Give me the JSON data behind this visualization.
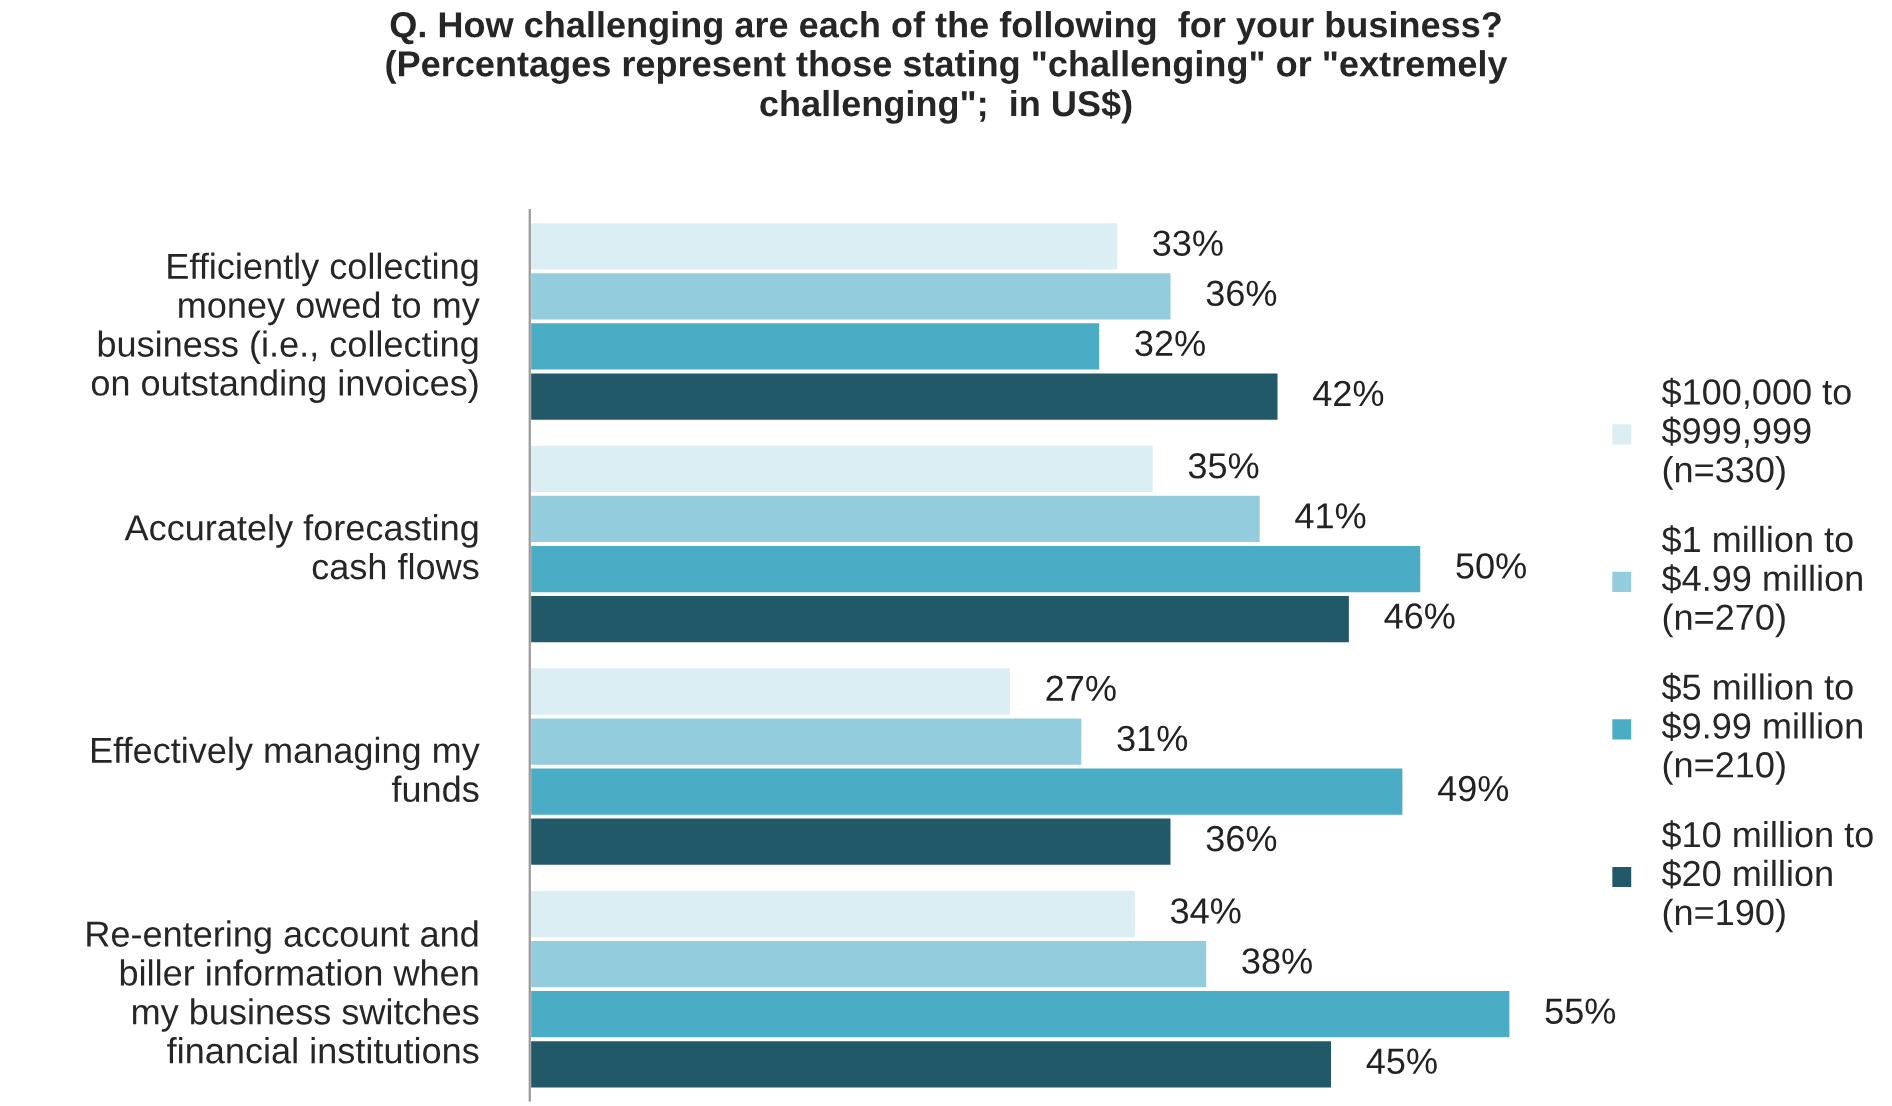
{
  "chart_data": {
    "type": "bar",
    "orientation": "horizontal",
    "title": "Q. How challenging are each of the following  for your business?\n(Percentages represent those stating \"challenging\" or \"extremely\nchallenging\";  in US$)",
    "categories": [
      "Efficiently collecting\nmoney owed to my\nbusiness (i.e., collecting\non outstanding invoices)",
      "Accurately forecasting\ncash flows",
      "Effectively managing my\nfunds",
      "Re-entering account and\nbiller information when\nmy business switches\nfinancial institutions"
    ],
    "series": [
      {
        "name": "$100,000 to\n$999,999\n(n=330)",
        "color": "#dbeef4",
        "values": [
          33,
          35,
          27,
          34
        ],
        "value_labels": [
          "33%",
          "35%",
          "27%",
          "34%"
        ]
      },
      {
        "name": "$1 million to\n$4.99 million\n(n=270)",
        "color": "#93cddd",
        "values": [
          36,
          41,
          31,
          38
        ],
        "value_labels": [
          "36%",
          "41%",
          "31%",
          "38%"
        ]
      },
      {
        "name": "$5 million to\n$9.99 million\n(n=210)",
        "color": "#4bacc6",
        "values": [
          32,
          50,
          49,
          55
        ],
        "value_labels": [
          "32%",
          "50%",
          "49%",
          "55%"
        ]
      },
      {
        "name": "$10 million to\n$20 million\n(n=190)",
        "color": "#215968",
        "values": [
          42,
          46,
          36,
          45
        ],
        "value_labels": [
          "42%",
          "46%",
          "36%",
          "45%"
        ]
      }
    ],
    "legend": "right",
    "grid": false
  }
}
